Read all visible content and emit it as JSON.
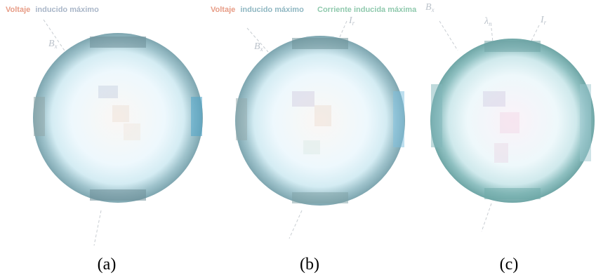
{
  "colors": {
    "voltage": "#e79c86",
    "current": "#8fc9ad",
    "max_suffix": "#9fb3ce",
    "symbol": "#bcc3cb",
    "rim": "#7fa3a8",
    "core": "#f3fbff"
  },
  "panels": [
    {
      "caption": "(a)",
      "legend": {
        "voltage_part1": "Voltaje",
        "voltage_part2": "inducido máximo"
      },
      "labels": {
        "field": "B",
        "field_sub": "x"
      }
    },
    {
      "caption": "(b)",
      "legend": {
        "voltage_part1": "Voltaje",
        "voltage_part2": "inducido máximo",
        "current": "Corriente inducida máxima"
      },
      "labels": {
        "field": "B",
        "field_sub": "x",
        "current": "I",
        "current_sub": "r"
      }
    },
    {
      "caption": "(c)",
      "legend": {},
      "labels": {
        "field": "B",
        "field_sub": "x",
        "third": "λ",
        "third_sub": "n",
        "current": "I",
        "current_sub": "r"
      }
    }
  ]
}
